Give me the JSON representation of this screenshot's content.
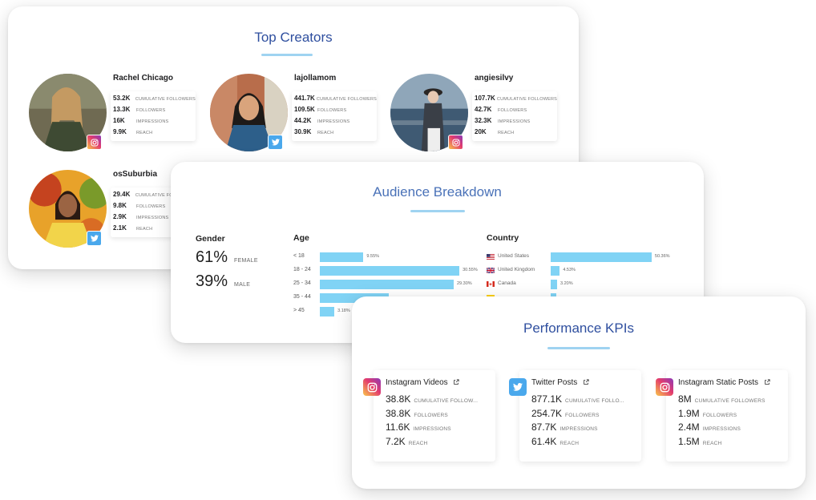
{
  "creators_panel": {
    "title": "Top Creators",
    "creators": [
      {
        "name": "Rachel Chicago",
        "platform": "instagram-icon",
        "stats": [
          {
            "value": "53.2K",
            "label": "CUMULATIVE FOLLOWERS"
          },
          {
            "value": "13.3K",
            "label": "FOLLOWERS"
          },
          {
            "value": "16K",
            "label": "IMPRESSIONS"
          },
          {
            "value": "9.9K",
            "label": "REACH"
          }
        ]
      },
      {
        "name": "lajollamom",
        "platform": "twitter-icon",
        "stats": [
          {
            "value": "441.7K",
            "label": "CUMULATIVE FOLLOWERS"
          },
          {
            "value": "109.5K",
            "label": "FOLLOWERS"
          },
          {
            "value": "44.2K",
            "label": "IMPRESSIONS"
          },
          {
            "value": "30.9K",
            "label": "REACH"
          }
        ]
      },
      {
        "name": "angiesilvy",
        "platform": "instagram-icon",
        "stats": [
          {
            "value": "107.7K",
            "label": "CUMULATIVE FOLLOWERS"
          },
          {
            "value": "42.7K",
            "label": "FOLLOWERS"
          },
          {
            "value": "32.3K",
            "label": "IMPRESSIONS"
          },
          {
            "value": "20K",
            "label": "REACH"
          }
        ]
      },
      {
        "name": "osSuburbia",
        "platform": "twitter-icon",
        "stats": [
          {
            "value": "29.4K",
            "label": "CUMULATIVE FOLLOWERS"
          },
          {
            "value": "9.8K",
            "label": "FOLLOWERS"
          },
          {
            "value": "2.9K",
            "label": "IMPRESSIONS"
          },
          {
            "value": "2.1K",
            "label": "REACH"
          }
        ]
      }
    ]
  },
  "audience_panel": {
    "title": "Audience Breakdown",
    "gender": {
      "heading": "Gender",
      "items": [
        {
          "pct": "61%",
          "label": "FEMALE"
        },
        {
          "pct": "39%",
          "label": "MALE"
        }
      ]
    },
    "age": {
      "heading": "Age",
      "rows": [
        {
          "label": "< 18",
          "value": 9.55,
          "display": "9.55%"
        },
        {
          "label": "18 - 24",
          "value": 30.55,
          "display": "30.55%"
        },
        {
          "label": "25 - 34",
          "value": 29.3,
          "display": "29.30%"
        },
        {
          "label": "35 - 44",
          "value": 15.0,
          "display": ""
        },
        {
          "label": "> 45",
          "value": 3.18,
          "display": "3.18%"
        }
      ]
    },
    "country": {
      "heading": "Country",
      "rows": [
        {
          "label": "United States",
          "value": 50.36,
          "display": "50.36%",
          "flag": "us-flag-icon"
        },
        {
          "label": "United Kingdom",
          "value": 4.53,
          "display": "4.53%",
          "flag": "uk-flag-icon"
        },
        {
          "label": "Canada",
          "value": 3.2,
          "display": "3.20%",
          "flag": "canada-flag-icon"
        },
        {
          "label": "",
          "value": 2.9,
          "display": "",
          "flag": "colombia-flag-icon"
        }
      ]
    }
  },
  "kpi_panel": {
    "title": "Performance KPIs",
    "cards": [
      {
        "name": "Instagram Videos",
        "platform": "instagram-icon",
        "stats": [
          {
            "value": "38.8K",
            "label": "CUMULATIVE FOLLOW..."
          },
          {
            "value": "38.8K",
            "label": "FOLLOWERS"
          },
          {
            "value": "11.6K",
            "label": "IMPRESSIONS"
          },
          {
            "value": "7.2K",
            "label": "REACH"
          }
        ]
      },
      {
        "name": "Twitter Posts",
        "platform": "twitter-icon",
        "stats": [
          {
            "value": "877.1K",
            "label": "CUMULATIVE FOLLO..."
          },
          {
            "value": "254.7K",
            "label": "FOLLOWERS"
          },
          {
            "value": "87.7K",
            "label": "IMPRESSIONS"
          },
          {
            "value": "61.4K",
            "label": "REACH"
          }
        ]
      },
      {
        "name": "Instagram Static Posts",
        "platform": "instagram-icon",
        "stats": [
          {
            "value": "8M",
            "label": "CUMULATIVE FOLLOWERS"
          },
          {
            "value": "1.9M",
            "label": "FOLLOWERS"
          },
          {
            "value": "2.4M",
            "label": "IMPRESSIONS"
          },
          {
            "value": "1.5M",
            "label": "REACH"
          }
        ]
      }
    ]
  },
  "colors": {
    "title": "#2f4f9f",
    "bar": "#80d3f5",
    "underline": "#9fd3f1",
    "instagram": "#e33b6d",
    "twitter": "#4aa8ec"
  }
}
